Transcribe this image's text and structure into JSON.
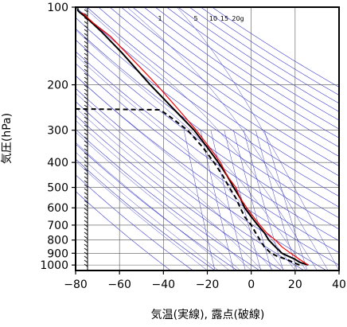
{
  "chart_data": {
    "type": "line",
    "title": "",
    "xlabel": "気温(実線), 露点(破線)",
    "ylabel": "気圧(hPa)",
    "xlim": [
      -80,
      40
    ],
    "ylim": [
      1050,
      100
    ],
    "y_scale": "log",
    "grid": true,
    "x_ticks": [
      {
        "v": -80,
        "label": "−80"
      },
      {
        "v": -60,
        "label": "−60"
      },
      {
        "v": -40,
        "label": "−40"
      },
      {
        "v": -20,
        "label": "−20"
      },
      {
        "v": 0,
        "label": "0"
      },
      {
        "v": 20,
        "label": "20"
      },
      {
        "v": 40,
        "label": "40"
      }
    ],
    "y_ticks": [
      {
        "v": 100,
        "label": "100"
      },
      {
        "v": 200,
        "label": "200"
      },
      {
        "v": 300,
        "label": "300"
      },
      {
        "v": 400,
        "label": "400"
      },
      {
        "v": 500,
        "label": "500"
      },
      {
        "v": 600,
        "label": "600"
      },
      {
        "v": 700,
        "label": "700"
      },
      {
        "v": 800,
        "label": "800"
      },
      {
        "v": 900,
        "label": "900"
      },
      {
        "v": 1000,
        "label": "1000"
      }
    ],
    "mixing_ratio_labels": [
      "1",
      "5",
      "10",
      "15",
      "20g"
    ],
    "series": [
      {
        "role": "temperature",
        "style": "solid",
        "color": "#000000",
        "points": [
          [
            1000,
            26
          ],
          [
            975,
            22
          ],
          [
            950,
            20
          ],
          [
            925,
            17
          ],
          [
            900,
            14
          ],
          [
            850,
            11
          ],
          [
            800,
            8
          ],
          [
            750,
            6
          ],
          [
            700,
            3
          ],
          [
            650,
            0
          ],
          [
            600,
            -3
          ],
          [
            550,
            -5
          ],
          [
            500,
            -8
          ],
          [
            450,
            -11
          ],
          [
            400,
            -15
          ],
          [
            350,
            -20
          ],
          [
            300,
            -26
          ],
          [
            250,
            -35
          ],
          [
            200,
            -46
          ],
          [
            150,
            -59
          ],
          [
            125,
            -68
          ],
          [
            110,
            -75
          ],
          [
            105,
            -78
          ],
          [
            103,
            -79
          ],
          [
            101,
            -79
          ]
        ]
      },
      {
        "role": "dewpoint",
        "style": "dashed",
        "color": "#000000",
        "points": [
          [
            1000,
            22
          ],
          [
            975,
            19
          ],
          [
            950,
            16
          ],
          [
            925,
            12
          ],
          [
            900,
            9
          ],
          [
            850,
            6
          ],
          [
            800,
            4
          ],
          [
            750,
            2
          ],
          [
            700,
            0
          ],
          [
            650,
            -3
          ],
          [
            600,
            -5
          ],
          [
            550,
            -7
          ],
          [
            500,
            -10
          ],
          [
            450,
            -13
          ],
          [
            400,
            -17
          ],
          [
            350,
            -22
          ],
          [
            300,
            -29
          ],
          [
            270,
            -36
          ],
          [
            255,
            -40
          ],
          [
            250,
            -42
          ],
          [
            248,
            -80
          ],
          [
            100,
            -80
          ]
        ]
      },
      {
        "role": "reference",
        "style": "solid",
        "color": "#ff0000",
        "points": [
          [
            1000,
            26
          ],
          [
            950,
            22
          ],
          [
            900,
            18
          ],
          [
            850,
            14
          ],
          [
            800,
            11
          ],
          [
            750,
            7
          ],
          [
            700,
            4
          ],
          [
            650,
            1
          ],
          [
            600,
            -2
          ],
          [
            550,
            -5
          ],
          [
            500,
            -7
          ],
          [
            450,
            -11
          ],
          [
            400,
            -14
          ],
          [
            350,
            -19
          ],
          [
            300,
            -25
          ],
          [
            250,
            -33
          ],
          [
            200,
            -43
          ],
          [
            150,
            -57
          ],
          [
            130,
            -64
          ],
          [
            115,
            -72
          ],
          [
            105,
            -77
          ]
        ]
      }
    ]
  }
}
